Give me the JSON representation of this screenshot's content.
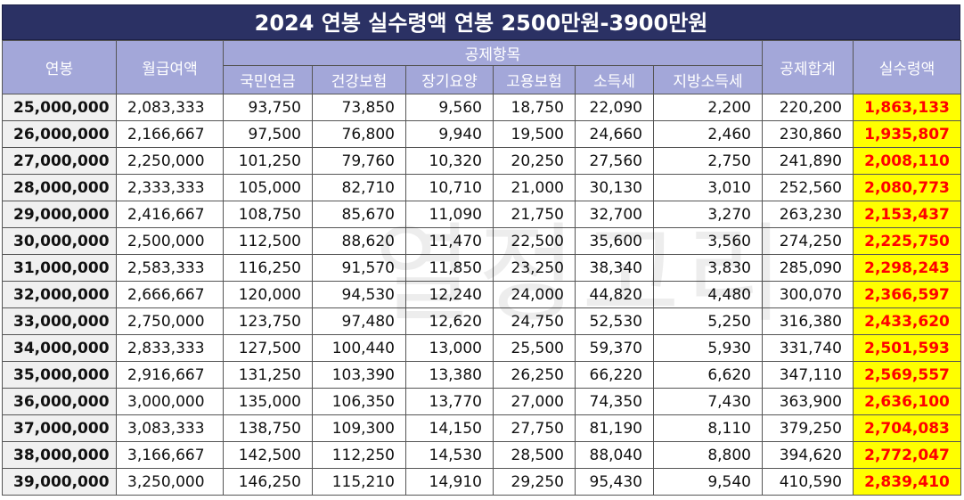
{
  "title": "2024 연봉 실수령액 연봉 2500만원-3900만원",
  "headers": {
    "salary": "연봉",
    "monthly": "월급여액",
    "deductions": "공제항목",
    "pension": "국민연금",
    "health": "건강보험",
    "longterm": "장기요양",
    "employment": "고용보험",
    "income_tax": "소득세",
    "local_tax": "지방소득세",
    "total": "공제합계",
    "net": "실수령액"
  },
  "watermark": "열정고리",
  "rows": [
    [
      "25,000,000",
      "2,083,333",
      "93,750",
      "73,850",
      "9,560",
      "18,750",
      "22,090",
      "2,200",
      "220,200",
      "1,863,133"
    ],
    [
      "26,000,000",
      "2,166,667",
      "97,500",
      "76,800",
      "9,940",
      "19,500",
      "24,660",
      "2,460",
      "230,860",
      "1,935,807"
    ],
    [
      "27,000,000",
      "2,250,000",
      "101,250",
      "79,760",
      "10,320",
      "20,250",
      "27,560",
      "2,750",
      "241,890",
      "2,008,110"
    ],
    [
      "28,000,000",
      "2,333,333",
      "105,000",
      "82,710",
      "10,710",
      "21,000",
      "30,130",
      "3,010",
      "252,560",
      "2,080,773"
    ],
    [
      "29,000,000",
      "2,416,667",
      "108,750",
      "85,670",
      "11,090",
      "21,750",
      "32,700",
      "3,270",
      "263,230",
      "2,153,437"
    ],
    [
      "30,000,000",
      "2,500,000",
      "112,500",
      "88,620",
      "11,470",
      "22,500",
      "35,600",
      "3,560",
      "274,250",
      "2,225,750"
    ],
    [
      "31,000,000",
      "2,583,333",
      "116,250",
      "91,570",
      "11,850",
      "23,250",
      "38,340",
      "3,830",
      "285,090",
      "2,298,243"
    ],
    [
      "32,000,000",
      "2,666,667",
      "120,000",
      "94,530",
      "12,240",
      "24,000",
      "44,820",
      "4,480",
      "300,070",
      "2,366,597"
    ],
    [
      "33,000,000",
      "2,750,000",
      "123,750",
      "97,480",
      "12,620",
      "24,750",
      "52,530",
      "5,250",
      "316,380",
      "2,433,620"
    ],
    [
      "34,000,000",
      "2,833,333",
      "127,500",
      "100,440",
      "13,000",
      "25,500",
      "59,370",
      "5,930",
      "331,740",
      "2,501,593"
    ],
    [
      "35,000,000",
      "2,916,667",
      "131,250",
      "103,390",
      "13,380",
      "26,250",
      "66,220",
      "6,620",
      "347,110",
      "2,569,557"
    ],
    [
      "36,000,000",
      "3,000,000",
      "135,000",
      "106,350",
      "13,770",
      "27,000",
      "74,350",
      "7,430",
      "363,900",
      "2,636,100"
    ],
    [
      "37,000,000",
      "3,083,333",
      "138,750",
      "109,300",
      "14,150",
      "27,750",
      "81,190",
      "8,110",
      "379,250",
      "2,704,083"
    ],
    [
      "38,000,000",
      "3,166,667",
      "142,500",
      "112,250",
      "14,530",
      "28,500",
      "88,040",
      "8,800",
      "394,620",
      "2,772,047"
    ],
    [
      "39,000,000",
      "3,250,000",
      "146,250",
      "115,210",
      "14,910",
      "29,250",
      "95,430",
      "9,540",
      "410,590",
      "2,839,410"
    ]
  ]
}
